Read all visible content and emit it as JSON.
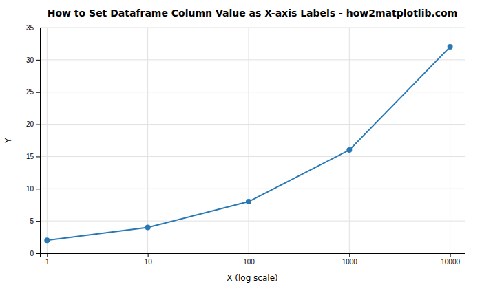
{
  "chart_data": {
    "type": "line",
    "title": "How to Set Dataframe Column Value as X-axis Labels - how2matplotlib.com",
    "xlabel": "X (log scale)",
    "ylabel": "Y",
    "x": [
      1,
      10,
      100,
      1000,
      10000
    ],
    "values": [
      2,
      4,
      8,
      16,
      32
    ],
    "color": "#2878b5",
    "marker": "circle",
    "log": "x",
    "xlim": [
      0.85,
      14000
    ],
    "xticks": [
      1,
      10,
      100,
      1000,
      10000
    ],
    "ylim": [
      0,
      35
    ],
    "yticks": [
      0,
      5,
      10,
      15,
      20,
      25,
      30,
      35
    ],
    "grid": true
  }
}
